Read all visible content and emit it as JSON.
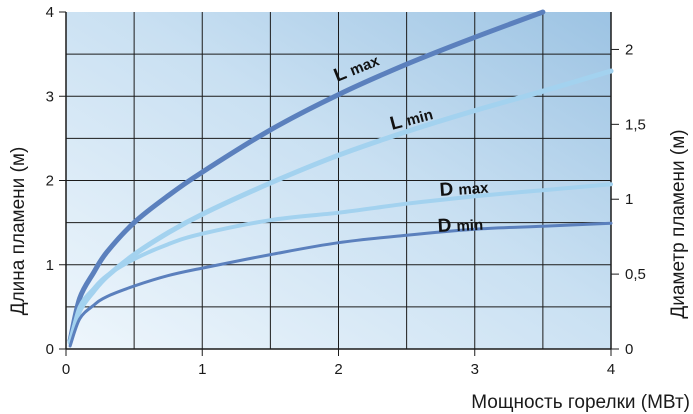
{
  "chart_data": {
    "type": "line",
    "xlabel": "Мощность горелки (МВт)",
    "ylabel": "Длина пламени (м)",
    "y2label": "Диаметр пламени (м)",
    "xlim": [
      0,
      4
    ],
    "ylim": [
      0,
      4
    ],
    "y2lim": [
      0,
      2.25
    ],
    "x_ticks": [
      "0",
      "1",
      "2",
      "3",
      "4"
    ],
    "y_ticks": [
      "0",
      "1",
      "2",
      "3",
      "4"
    ],
    "y2_ticks": [
      "0",
      "0,5",
      "1",
      "1,5",
      "2"
    ],
    "grid": true,
    "series": [
      {
        "name_main": "L",
        "name_sub": "max",
        "axis": "left",
        "color": "#5b80bd",
        "width": 5,
        "x": [
          0.03,
          0.1,
          0.2,
          0.3,
          0.5,
          0.75,
          1.0,
          1.5,
          2.0,
          2.5,
          3.0,
          3.5
        ],
        "y": [
          0.1,
          0.6,
          0.9,
          1.15,
          1.5,
          1.82,
          2.1,
          2.6,
          3.02,
          3.38,
          3.7,
          4.0
        ]
      },
      {
        "name_main": "L",
        "name_sub": "min",
        "axis": "left",
        "color": "#a3d2ef",
        "width": 5,
        "x": [
          0.03,
          0.1,
          0.2,
          0.3,
          0.5,
          0.75,
          1.0,
          1.5,
          2.0,
          2.5,
          3.0,
          3.5,
          4.0
        ],
        "y": [
          0.08,
          0.45,
          0.68,
          0.86,
          1.12,
          1.38,
          1.6,
          1.97,
          2.3,
          2.58,
          2.83,
          3.06,
          3.3
        ]
      },
      {
        "name_main": "D",
        "name_sub": "max",
        "axis": "right",
        "color": "#a3d2ef",
        "width": 4,
        "x": [
          0.03,
          0.1,
          0.2,
          0.3,
          0.5,
          0.75,
          1.0,
          1.5,
          2.0,
          2.5,
          3.0,
          3.5,
          4.0
        ],
        "y": [
          0.04,
          0.28,
          0.4,
          0.49,
          0.6,
          0.7,
          0.77,
          0.86,
          0.91,
          0.97,
          1.02,
          1.06,
          1.1
        ]
      },
      {
        "name_main": "D",
        "name_sub": "min",
        "axis": "right",
        "color": "#5b80bd",
        "width": 3,
        "x": [
          0.03,
          0.1,
          0.2,
          0.3,
          0.5,
          0.75,
          1.0,
          1.5,
          2.0,
          2.5,
          3.0,
          3.5,
          4.0
        ],
        "y": [
          0.02,
          0.2,
          0.29,
          0.35,
          0.42,
          0.49,
          0.54,
          0.63,
          0.71,
          0.76,
          0.8,
          0.82,
          0.84
        ]
      }
    ]
  }
}
